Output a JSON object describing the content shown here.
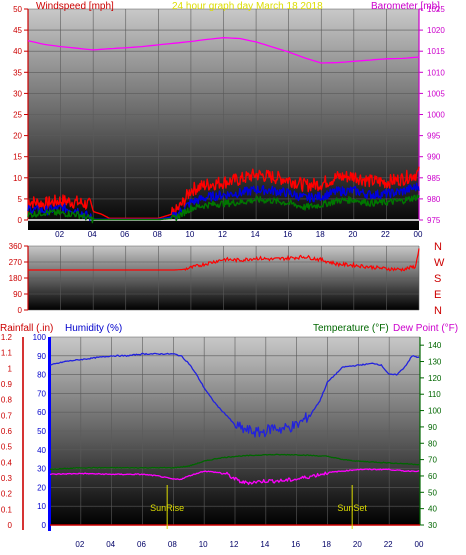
{
  "chart_data": [
    {
      "type": "line",
      "title": "24 hour graph day   March 18 2018",
      "left_axis_label": "Windspeed [mph]",
      "right_axis_label": "Barometer [mb]",
      "left_ticks": [
        "0",
        "5",
        "10",
        "15",
        "20",
        "25",
        "30",
        "35",
        "40",
        "45",
        "50"
      ],
      "right_ticks": [
        "975",
        "980",
        "985",
        "990",
        "995",
        "1000",
        "1005",
        "1010",
        "1015",
        "1020",
        "1025"
      ],
      "x_ticks": [
        "02",
        "04",
        "06",
        "08",
        "10",
        "12",
        "14",
        "16",
        "18",
        "20",
        "22",
        "00"
      ],
      "ylim_left": [
        0,
        50
      ],
      "ylim_right": [
        975,
        1025
      ],
      "x_hours": [
        0,
        24
      ],
      "series": [
        {
          "name": "",
          "axis": "right",
          "color": "#ff00ff",
          "x": [
            0,
            1,
            2,
            3,
            4,
            5,
            6,
            7,
            8,
            9,
            10,
            11,
            12,
            13,
            14,
            15,
            16,
            17,
            18,
            19,
            20,
            21,
            22,
            23,
            24
          ],
          "values": [
            1017.5,
            1016.6,
            1016.1,
            1015.7,
            1015.3,
            1015.6,
            1015.8,
            1016.1,
            1016.5,
            1016.9,
            1017.3,
            1017.8,
            1018.2,
            1018.0,
            1017.2,
            1016.0,
            1014.8,
            1013.4,
            1012.2,
            1012.3,
            1012.6,
            1012.9,
            1013.2,
            1013.3,
            1013.6
          ]
        },
        {
          "name": "",
          "axis": "left",
          "color": "#ff0000",
          "x": [
            0,
            1,
            2,
            3,
            3.8,
            4,
            4.5,
            5,
            6,
            7,
            8,
            9,
            9.5,
            10,
            11,
            12,
            13,
            14,
            15,
            16,
            17,
            18,
            19,
            20,
            21,
            22,
            23,
            24
          ],
          "values": [
            4.5,
            3.8,
            4.6,
            4.2,
            3.6,
            2.0,
            1.4,
            0.4,
            0.4,
            0.4,
            0.4,
            1.6,
            4.0,
            7.2,
            8.4,
            9.0,
            9.6,
            10.8,
            10.2,
            9.6,
            8.2,
            8.6,
            10.2,
            10.4,
            9.2,
            9.0,
            9.8,
            11.2
          ]
        },
        {
          "name": "",
          "axis": "left",
          "color": "#0000dd",
          "x": [
            0,
            1,
            2,
            3,
            4,
            8,
            9,
            10,
            11,
            12,
            13,
            14,
            15,
            16,
            17,
            18,
            19,
            20,
            21,
            22,
            23,
            24
          ],
          "values": [
            2.6,
            2.2,
            2.8,
            2.4,
            0.2,
            0.2,
            0.8,
            4.2,
            5.4,
            6.0,
            6.4,
            7.2,
            7.0,
            6.4,
            5.2,
            5.6,
            6.8,
            7.0,
            6.0,
            6.2,
            6.8,
            8.0
          ]
        },
        {
          "name": "",
          "axis": "left",
          "color": "#007700",
          "x": [
            0,
            1,
            2,
            3,
            4,
            8,
            9,
            10,
            11,
            12,
            13,
            14,
            15,
            16,
            17,
            18,
            19,
            20,
            21,
            22,
            23,
            24
          ],
          "values": [
            1.2,
            1.8,
            1.6,
            1.4,
            0.1,
            0.1,
            0.4,
            2.8,
            3.6,
            3.9,
            4.2,
            4.8,
            4.6,
            4.0,
            3.0,
            3.6,
            4.6,
            4.8,
            4.0,
            4.2,
            4.6,
            5.6
          ]
        }
      ]
    },
    {
      "type": "line",
      "left_ticks": [
        "0",
        "90",
        "180",
        "270",
        "360"
      ],
      "right_labels": [
        "N",
        "W",
        "S",
        "E",
        "N"
      ],
      "ylim": [
        0,
        360
      ],
      "x_hours": [
        0,
        24
      ],
      "series": [
        {
          "name": "",
          "color": "#ff0000",
          "x": [
            0,
            1,
            2,
            3,
            4,
            5,
            6,
            7,
            8,
            9,
            9.5,
            10,
            11,
            12,
            13,
            14,
            15,
            16,
            17,
            18,
            19,
            20,
            21,
            22,
            23,
            23.8,
            24
          ],
          "values": [
            225,
            225,
            225,
            225,
            225,
            225,
            225,
            225,
            225,
            225,
            228,
            238,
            262,
            285,
            280,
            292,
            285,
            292,
            300,
            282,
            258,
            252,
            242,
            232,
            228,
            245,
            350
          ]
        }
      ]
    },
    {
      "type": "line",
      "left_axis_label_rain": "Rainfall (.in)",
      "left_axis_label_humidity": "Humidity (%)",
      "right_axis_label_temp": "Temperature (°F)",
      "right_axis_label_dew": "Dew Point (°F)",
      "rain_ticks": [
        "0",
        "0.1",
        "0.2",
        "0.3",
        "0.4",
        "0.5",
        "0.6",
        "0.7",
        "0.8",
        "0.9",
        "1",
        "1.1",
        "1.2"
      ],
      "humidity_ticks": [
        "0",
        "10",
        "20",
        "30",
        "40",
        "50",
        "60",
        "70",
        "80",
        "90",
        "100"
      ],
      "temp_ticks": [
        "30",
        "40",
        "50",
        "60",
        "70",
        "80",
        "90",
        "100",
        "110",
        "120",
        "130",
        "140"
      ],
      "x_ticks": [
        "02",
        "04",
        "06",
        "08",
        "10",
        "12",
        "14",
        "16",
        "18",
        "20",
        "22",
        "00"
      ],
      "ylim_humidity": [
        0,
        100
      ],
      "ylim_temp": [
        30,
        145
      ],
      "x_hours": [
        0,
        24
      ],
      "annotations": [
        {
          "text": "SunRise",
          "hour": 7.6
        },
        {
          "text": "SunSet",
          "hour": 19.6
        }
      ],
      "series": [
        {
          "name": "",
          "axis": "humidity",
          "color": "#2222dd",
          "x": [
            0,
            1,
            2,
            3,
            4,
            5,
            6,
            7,
            8,
            8.5,
            9,
            9.5,
            10,
            10.5,
            11,
            11.5,
            12,
            12.5,
            13,
            13.5,
            14,
            14.5,
            15,
            15.5,
            16,
            16.5,
            17,
            17.5,
            18,
            19,
            20,
            21,
            21.5,
            22,
            22.5,
            23,
            23.5,
            24
          ],
          "values": [
            85,
            87,
            88,
            89,
            90,
            90,
            91,
            91,
            91,
            90,
            86,
            80,
            73,
            67,
            62,
            58,
            53,
            51,
            50,
            49,
            50,
            52,
            51,
            52,
            53,
            56,
            60,
            66,
            76,
            84,
            85,
            86,
            85,
            80,
            80,
            84,
            90,
            89
          ]
        },
        {
          "name": "",
          "axis": "temp",
          "color": "#006600",
          "x": [
            0,
            2,
            4,
            6,
            8,
            9,
            10,
            11,
            12,
            14,
            16,
            18,
            19,
            20,
            22,
            24
          ],
          "values": [
            64,
            65,
            65,
            65,
            65,
            66,
            69,
            71,
            72,
            73,
            73,
            72,
            70,
            69,
            68,
            67
          ]
        },
        {
          "name": "",
          "axis": "temp",
          "color": "#ff00ff",
          "x": [
            0,
            2,
            4,
            6,
            7,
            8,
            8.5,
            9,
            10,
            11,
            11.5,
            12,
            12.5,
            13,
            14,
            15,
            16,
            17,
            18,
            19,
            20,
            21,
            22,
            23,
            24
          ],
          "values": [
            61,
            61.5,
            61,
            61,
            60,
            58,
            58,
            60,
            63,
            62,
            61,
            58,
            56,
            56,
            57,
            57,
            58,
            60,
            62,
            63,
            64,
            64,
            64,
            63,
            63
          ]
        }
      ]
    }
  ]
}
